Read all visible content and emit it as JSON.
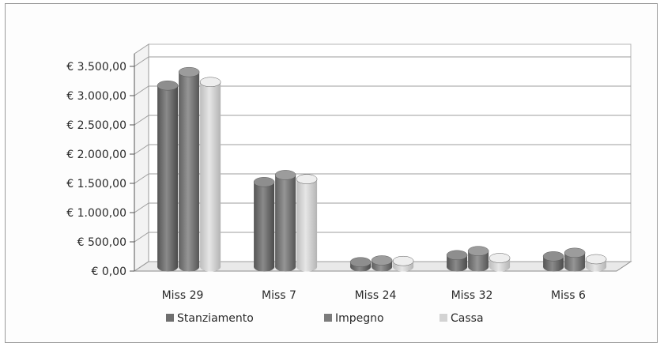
{
  "chart_data": {
    "type": "bar",
    "categories": [
      "Miss 29",
      "Miss 7",
      "Miss 24",
      "Miss 32",
      "Miss 6"
    ],
    "series": [
      {
        "name": "Stanziamento",
        "values": [
          3100,
          1450,
          80,
          200,
          180
        ],
        "color": "#6f6f6f"
      },
      {
        "name": "Impegno",
        "values": [
          3330,
          1570,
          110,
          270,
          240
        ],
        "color": "#7c7c7c"
      },
      {
        "name": "Cassa",
        "values": [
          3160,
          1500,
          100,
          150,
          130
        ],
        "color": "#d3d3d3"
      }
    ],
    "y_ticks": [
      "€ 0,00",
      "€ 500,00",
      "€ 1.000,00",
      "€ 1.500,00",
      "€ 2.000,00",
      "€ 2.500,00",
      "€ 3.000,00",
      "€ 3.500,00"
    ],
    "ylim": [
      0,
      3500
    ],
    "grid": true,
    "legend": "bottom"
  }
}
